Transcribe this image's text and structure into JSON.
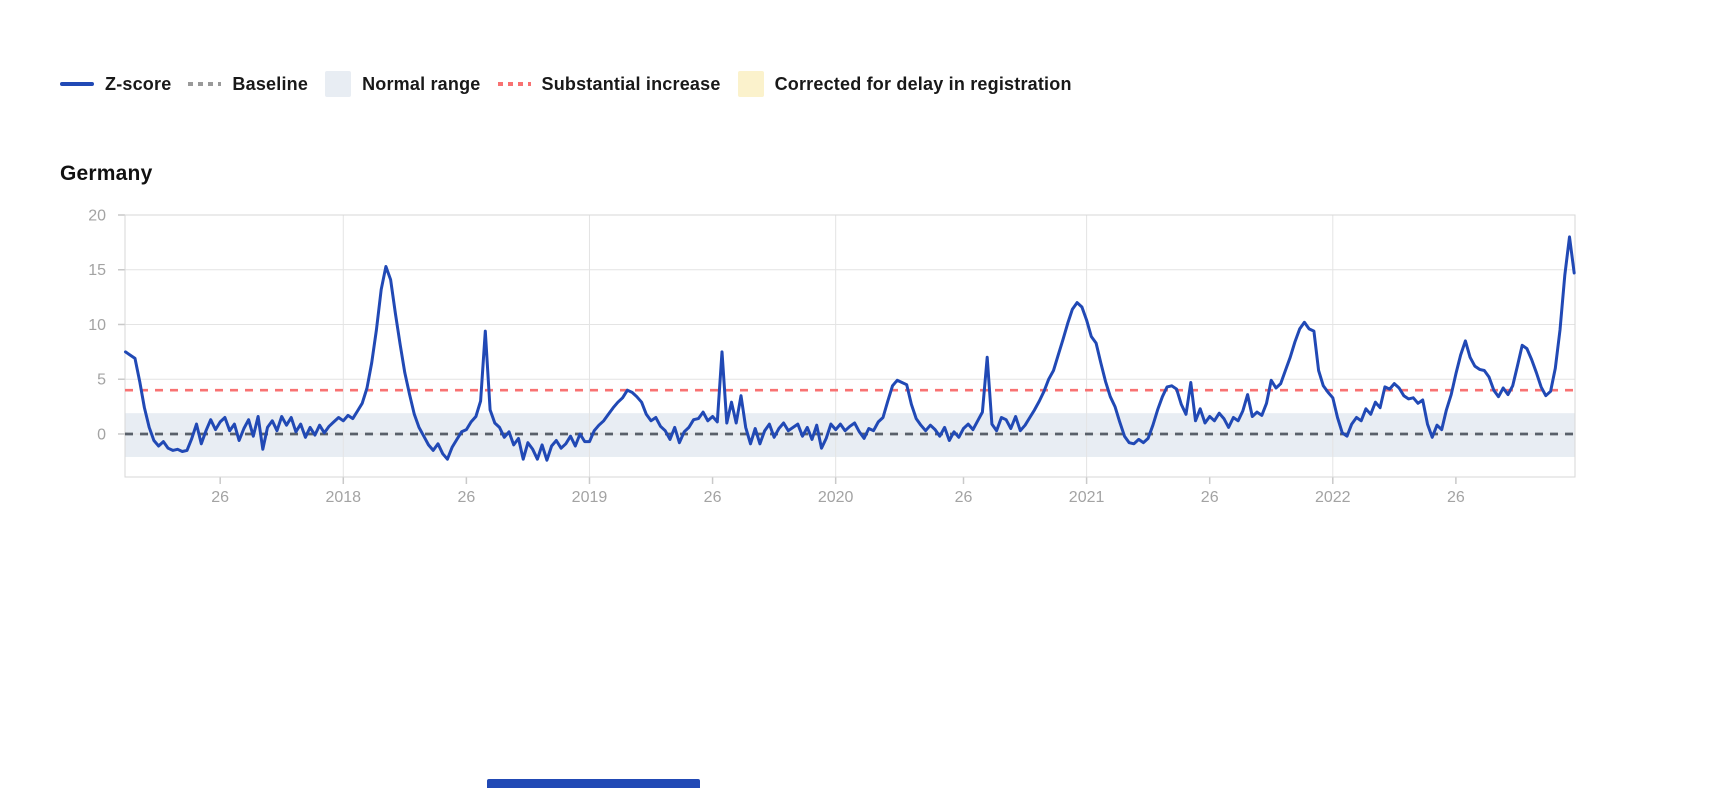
{
  "legend": {
    "items": [
      {
        "label": "Z-score",
        "swatch": "line",
        "color": "zscore_line"
      },
      {
        "label": "Baseline",
        "swatch": "dots",
        "color": "baseline_legend"
      },
      {
        "label": "Normal range",
        "swatch": "square",
        "color": "normal_range"
      },
      {
        "label": "Substantial increase",
        "swatch": "dots",
        "color": "substantial_increase"
      },
      {
        "label": "Corrected for delay in registration",
        "swatch": "square",
        "color": "corrected_delay"
      }
    ]
  },
  "colors": {
    "zscore_line": "#2149b5",
    "baseline": "#59606a",
    "baseline_legend": "#9a9a9a",
    "normal_range": "#e8edf3",
    "substantial_increase": "#f87272",
    "corrected_delay": "#fbf2cc",
    "grid": "#e4e4e4",
    "plot_border": "#d7d7d7",
    "tick_mark": "#c9c9c9",
    "tick_label": "#a3a3a3",
    "text": "#191919"
  },
  "chart_data": {
    "type": "line",
    "title": "Germany",
    "x_start": "2017-W07",
    "x_end": "2022-W52",
    "x_unit": "ISO week",
    "ylim": [
      -3.93,
      20
    ],
    "y_ticks": [
      0,
      5,
      10,
      15,
      20
    ],
    "x_ticks": [
      {
        "label": "26",
        "index": 20,
        "grid": false
      },
      {
        "label": "2018",
        "index": 46,
        "grid": true
      },
      {
        "label": "26",
        "index": 72,
        "grid": false
      },
      {
        "label": "2019",
        "index": 98,
        "grid": true
      },
      {
        "label": "26",
        "index": 124,
        "grid": false
      },
      {
        "label": "2020",
        "index": 150,
        "grid": true
      },
      {
        "label": "26",
        "index": 177,
        "grid": false
      },
      {
        "label": "2021",
        "index": 203,
        "grid": true
      },
      {
        "label": "26",
        "index": 229,
        "grid": false
      },
      {
        "label": "2022",
        "index": 255,
        "grid": true
      },
      {
        "label": "26",
        "index": 281,
        "grid": false
      }
    ],
    "baseline": 0,
    "substantial_increase": 4,
    "normal_range": [
      -2.1,
      1.9
    ],
    "grid": true,
    "legend_position": "top-left",
    "series": [
      {
        "name": "Z-score",
        "values": [
          7.5,
          7.2,
          6.9,
          4.8,
          2.4,
          0.6,
          -0.6,
          -1.1,
          -0.7,
          -1.3,
          -1.5,
          -1.4,
          -1.6,
          -1.5,
          -0.4,
          0.9,
          -0.9,
          0.3,
          1.3,
          0.4,
          1.1,
          1.5,
          0.3,
          0.9,
          -0.6,
          0.5,
          1.3,
          -0.2,
          1.6,
          -1.4,
          0.6,
          1.2,
          0.3,
          1.6,
          0.8,
          1.5,
          0.2,
          0.9,
          -0.3,
          0.6,
          -0.1,
          0.8,
          0.1,
          0.7,
          1.1,
          1.5,
          1.2,
          1.7,
          1.4,
          2.1,
          2.8,
          4.2,
          6.5,
          9.5,
          13.2,
          15.3,
          14.1,
          11.0,
          8.2,
          5.6,
          3.6,
          1.8,
          0.6,
          -0.2,
          -1.0,
          -1.5,
          -0.9,
          -1.8,
          -2.3,
          -1.2,
          -0.5,
          0.2,
          0.4,
          1.1,
          1.6,
          3.0,
          9.4,
          2.2,
          1.0,
          0.6,
          -0.3,
          0.2,
          -1.0,
          -0.4,
          -2.3,
          -0.8,
          -1.4,
          -2.3,
          -1.0,
          -2.4,
          -1.1,
          -0.6,
          -1.3,
          -0.9,
          -0.2,
          -1.1,
          0.0,
          -0.7,
          -0.7,
          0.3,
          0.8,
          1.2,
          1.8,
          2.4,
          2.9,
          3.3,
          4.0,
          3.8,
          3.4,
          2.9,
          1.8,
          1.2,
          1.5,
          0.7,
          0.3,
          -0.5,
          0.6,
          -0.8,
          0.2,
          0.6,
          1.3,
          1.4,
          2.0,
          1.2,
          1.6,
          1.1,
          7.5,
          1.0,
          2.9,
          1.0,
          3.5,
          0.6,
          -0.9,
          0.5,
          -0.9,
          0.3,
          0.9,
          -0.3,
          0.5,
          1.0,
          0.3,
          0.6,
          0.9,
          -0.2,
          0.6,
          -0.5,
          0.8,
          -1.3,
          -0.4,
          0.9,
          0.4,
          0.9,
          0.3,
          0.7,
          1.0,
          0.2,
          -0.4,
          0.5,
          0.3,
          1.1,
          1.5,
          3.0,
          4.4,
          4.9,
          4.7,
          4.5,
          2.7,
          1.4,
          0.8,
          0.3,
          0.8,
          0.4,
          -0.2,
          0.6,
          -0.6,
          0.2,
          -0.3,
          0.5,
          0.9,
          0.4,
          1.2,
          2.0,
          7.0,
          0.9,
          0.3,
          1.5,
          1.3,
          0.5,
          1.6,
          0.3,
          0.8,
          1.5,
          2.2,
          3.0,
          3.9,
          5.0,
          5.8,
          7.2,
          8.6,
          10.1,
          11.4,
          12.0,
          11.6,
          10.4,
          8.9,
          8.3,
          6.5,
          4.8,
          3.4,
          2.5,
          1.1,
          -0.2,
          -0.8,
          -0.9,
          -0.5,
          -0.8,
          -0.4,
          0.8,
          2.2,
          3.4,
          4.3,
          4.4,
          4.1,
          2.7,
          1.8,
          4.7,
          1.2,
          2.3,
          1.0,
          1.6,
          1.2,
          1.9,
          1.4,
          0.6,
          1.5,
          1.2,
          2.1,
          3.6,
          1.6,
          2.0,
          1.7,
          2.8,
          4.9,
          4.2,
          4.6,
          5.8,
          7.0,
          8.4,
          9.6,
          10.2,
          9.6,
          9.4,
          5.8,
          4.4,
          3.8,
          3.3,
          1.5,
          0.1,
          -0.2,
          0.9,
          1.5,
          1.2,
          2.3,
          1.8,
          2.9,
          2.4,
          4.3,
          4.1,
          4.6,
          4.2,
          3.5,
          3.2,
          3.3,
          2.8,
          3.1,
          0.9,
          -0.3,
          0.8,
          0.4,
          2.2,
          3.6,
          5.5,
          7.2,
          8.5,
          7.0,
          6.2,
          5.9,
          5.8,
          5.2,
          4.0,
          3.4,
          4.2,
          3.6,
          4.4,
          6.2,
          8.1,
          7.8,
          6.8,
          5.6,
          4.3,
          3.5,
          3.9,
          6.0,
          9.5,
          14.5,
          18.0,
          14.7
        ]
      }
    ]
  }
}
